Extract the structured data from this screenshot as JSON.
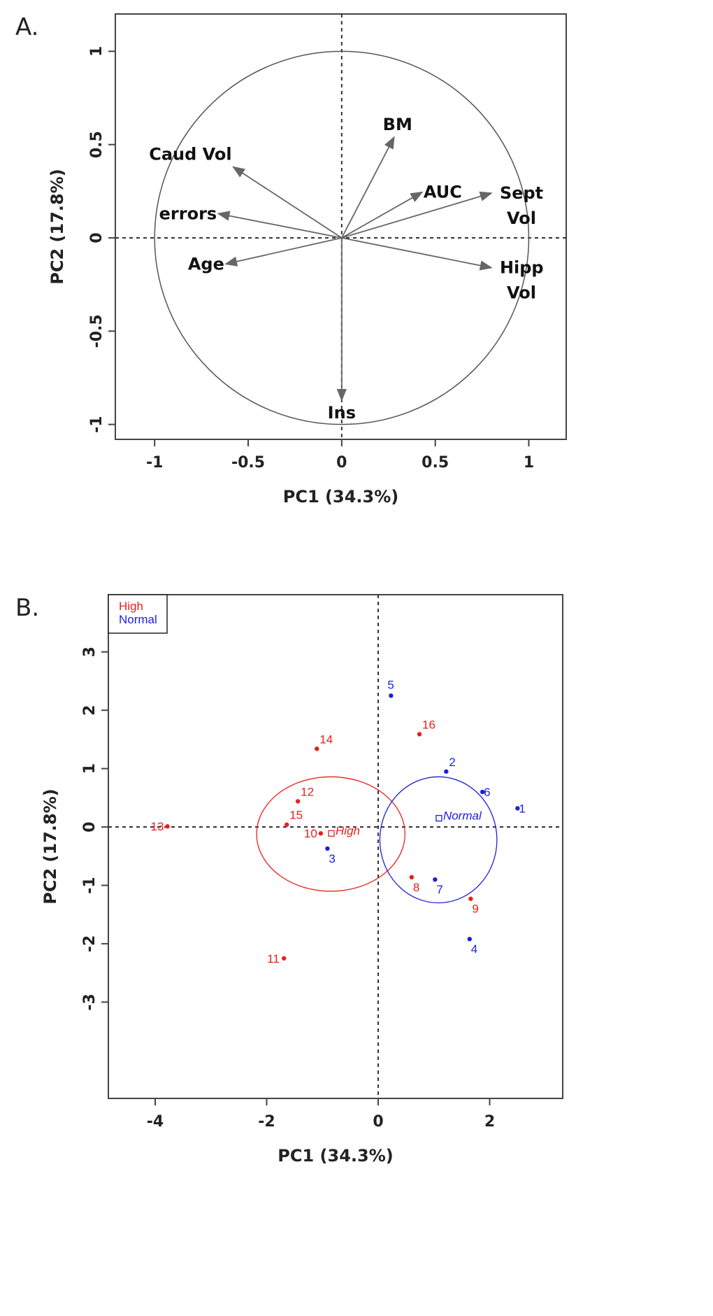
{
  "chart_data": [
    {
      "type": "scatter",
      "subtype": "pca-correlation-circle",
      "panel": "A.",
      "xlabel": "PC1 (34.3%)",
      "ylabel": "PC2 (17.8%)",
      "xlim": [
        -1.21,
        1.2
      ],
      "ylim": [
        -1.08,
        1.2
      ],
      "xticks": [
        -1,
        -0.5,
        0,
        0.5,
        1
      ],
      "xtick_labels": [
        "-1",
        "-0.5",
        "0",
        "0.5",
        "1"
      ],
      "yticks": [
        -1,
        -0.5,
        0,
        0.5,
        1
      ],
      "ytick_labels": [
        "-1",
        "-0.5",
        "0",
        "0.5",
        "1"
      ],
      "unit_circle": true,
      "vectors": [
        {
          "name": "BM",
          "lines": [
            "BM"
          ],
          "x": 0.28,
          "y": 0.54
        },
        {
          "name": "Caud Vol",
          "lines": [
            "Caud Vol"
          ],
          "x": -0.58,
          "y": 0.38
        },
        {
          "name": "AUC",
          "lines": [
            "AUC"
          ],
          "x": 0.43,
          "y": 0.245
        },
        {
          "name": "Sept Vol",
          "lines": [
            "Sept",
            "Vol"
          ],
          "x": 0.8,
          "y": 0.24
        },
        {
          "name": "errors",
          "lines": [
            "errors"
          ],
          "x": -0.66,
          "y": 0.13
        },
        {
          "name": "Age",
          "lines": [
            "Age"
          ],
          "x": -0.62,
          "y": -0.14
        },
        {
          "name": "Hipp Vol",
          "lines": [
            "Hipp",
            "Vol"
          ],
          "x": 0.8,
          "y": -0.16
        },
        {
          "name": "Ins",
          "lines": [
            "Ins"
          ],
          "x": 0.0,
          "y": -0.87
        }
      ]
    },
    {
      "type": "scatter",
      "panel": "B.",
      "xlabel": "PC1 (34.3%)",
      "ylabel": "PC2 (17.8%)",
      "xlim": [
        -4.84,
        3.31
      ],
      "ylim": [
        -4.65,
        3.98
      ],
      "xticks": [
        -4,
        -2,
        0,
        2
      ],
      "xtick_labels": [
        "-4",
        "-2",
        "0",
        "2"
      ],
      "yticks": [
        -3,
        -2,
        -1,
        0,
        1,
        2,
        3
      ],
      "ytick_labels": [
        "-3",
        "-2",
        "-1",
        "0",
        "1",
        "2",
        "3"
      ],
      "legend": {
        "position": "top-left",
        "entries": [
          {
            "label": "High",
            "color": "#e8201e"
          },
          {
            "label": "Normal",
            "color": "#1d1de0"
          }
        ]
      },
      "groups": [
        {
          "name": "High",
          "color": "#e8201e",
          "center": [
            -0.84,
            -0.11
          ],
          "ellipse": {
            "cx": -0.85,
            "cy": -0.12,
            "rx": 1.33,
            "ry": 0.98
          },
          "points": [
            {
              "id": "10",
              "x": -1.03,
              "y": -0.11
            },
            {
              "id": "11",
              "x": -1.69,
              "y": -2.25
            },
            {
              "id": "12",
              "x": -1.44,
              "y": 0.44
            },
            {
              "id": "13",
              "x": -3.78,
              "y": 0.01
            },
            {
              "id": "14",
              "x": -1.1,
              "y": 1.34
            },
            {
              "id": "15",
              "x": -1.64,
              "y": 0.04
            },
            {
              "id": "16",
              "x": 0.74,
              "y": 1.59
            },
            {
              "id": "8",
              "x": 0.6,
              "y": -0.86
            },
            {
              "id": "9",
              "x": 1.66,
              "y": -1.23
            }
          ]
        },
        {
          "name": "Normal",
          "color": "#1d1de0",
          "center": [
            1.09,
            0.15
          ],
          "ellipse": {
            "cx": 1.08,
            "cy": -0.22,
            "rx": 1.05,
            "ry": 1.08
          },
          "points": [
            {
              "id": "1",
              "x": 2.5,
              "y": 0.32
            },
            {
              "id": "2",
              "x": 1.22,
              "y": 0.95
            },
            {
              "id": "3",
              "x": -0.91,
              "y": -0.37
            },
            {
              "id": "4",
              "x": 1.64,
              "y": -1.92
            },
            {
              "id": "5",
              "x": 0.23,
              "y": 2.25
            },
            {
              "id": "6",
              "x": 1.87,
              "y": 0.6
            },
            {
              "id": "7",
              "x": 1.02,
              "y": -0.9
            }
          ]
        }
      ]
    }
  ]
}
